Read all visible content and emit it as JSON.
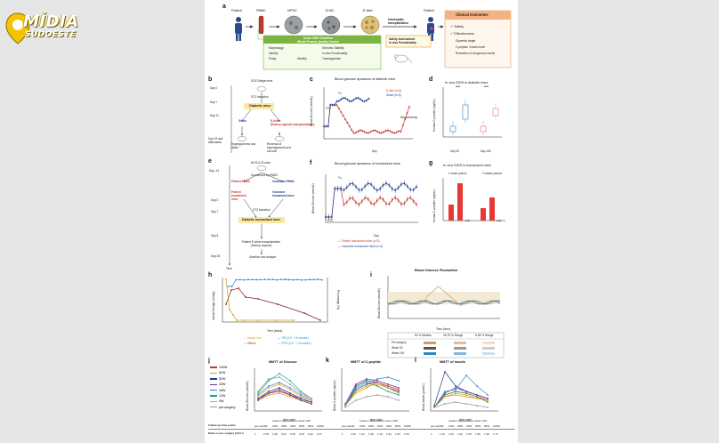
{
  "logo": {
    "line1": "MÍDIA",
    "line2": "SUDOESTE",
    "color": "#f5c400"
  },
  "panel_a": {
    "letter": "a",
    "stages": [
      "Patient",
      "PBMC",
      "hiPSC",
      "EnSC",
      "E-islet",
      "Patient"
    ],
    "transplant_label": "Intrahepatic\ntransplantation",
    "gmp_title": "Under GMP Condition\nWhole Process Quality Control",
    "gmp_items": [
      "Morphology",
      "Genomic Stability",
      "Identity",
      "In vitro Functionality",
      "Purity",
      "Sterility",
      "Tumorigenesis"
    ],
    "safety_title": "Safety Assessment\nIn vivo Functionality",
    "outcomes_title": "Clinical Outcomes",
    "outcomes": [
      "Safety",
      "Effectiveness"
    ],
    "outcome_sub": [
      "Glycemic target",
      "C-peptide / insulin level",
      "Reduction of exogenous insulin"
    ]
  },
  "panel_b": {
    "letter": "b",
    "days": [
      "Day 0",
      "Day 7",
      "Day 11",
      "Day 19 and afterwards"
    ],
    "mouse": "SCID Beige mice",
    "stz": "STZ induction",
    "diabetic": "Diabetic mice",
    "sham": "Sham",
    "eislets": "E-islets\n(Kidney capsule transplantation)",
    "out1": "Hyperglycemia and death",
    "out2": "Reversal of hyperglycemia and survival"
  },
  "panel_c": {
    "letter": "c",
    "title": "Blood glucose dynamics of diabetic mice",
    "ylabel": "Blood Glucose (mmol/L)",
    "xlabel": "Day",
    "legend": [
      "E-islet (n=5)",
      "Sham (n=5)"
    ],
    "annot_tx": "Tx",
    "annot_stz": "STZ",
    "annot_neph": "Nephrectomy"
  },
  "panel_d": {
    "letter": "d",
    "title": "In vivo GSIS in diabetic mice",
    "ylabel": "Human C-peptide (ng/mL)",
    "groups": [
      "Day 90",
      "Day 180"
    ],
    "sig": "****"
  },
  "panel_e": {
    "letter": "e",
    "days": [
      "Day -14",
      "Day 0",
      "Day 7",
      "Day 8",
      "Day 28"
    ],
    "mouse": "NCG-IL15 mice",
    "humanized": "Humanized by PBMC",
    "patient": "Patient-PBMC",
    "volunteer": "Volunteer-PBMC",
    "patient_mice": "Patient humanized mice",
    "volunteer_mice": "Volunteer humanized mice",
    "stz": "STZ induction",
    "diabetic": "Diabetic humanized mice",
    "transplant": "Patient E-islets transplantation\n(Kidney capsule)",
    "end": "Sacrifice and analyze",
    "time": "Time"
  },
  "panel_f": {
    "letter": "f",
    "title": "Blood glucose dynamics of humanized mice",
    "ylabel": "Blood Glucose (mmol/L)",
    "xlabel": "Day",
    "legend": [
      "Patient humanized mice (n=3)",
      "Volunteer humanized mice (n=3)"
    ],
    "annot_tx": "Tx",
    "annot_stz": "STZ"
  },
  "panel_g": {
    "letter": "g",
    "title": "In vivo GSIS in humanized mice",
    "ylabel": "Human C-peptide (ng/mL)",
    "sub": [
      "1 week post-tx",
      "2 weeks post-tx"
    ],
    "ud": "u.d."
  },
  "panel_h": {
    "letter": "h",
    "ylabel_left": "Insulin Dosage (U/day)",
    "ylabel_right": "Percentage (%)",
    "xlabel": "Time (week)",
    "legend": [
      "Insulin Use",
      "HbA1c",
      "TIR (3.9 ~ 10 mmol/L)",
      "TITR (3.9 ~ 7.8 mmol/L)"
    ]
  },
  "panel_i": {
    "letter": "i",
    "title": "Blood Glucose Fluctuation",
    "xlabel": "Time (hour)",
    "ylabel": "Blood Glucose (mmol/L)",
    "legend_cols": [
      "50 % Median",
      "25-75 % Range",
      "5-95 % Range"
    ],
    "legend_rows": [
      "Pre-surgery",
      "Week 52",
      "Week 100"
    ]
  },
  "panel_j": {
    "letter": "j",
    "title": "MMTT of Glucose",
    "ylabel": "Blood Glucose (mmol/L)",
    "xlabel": "time (min)",
    "legend": [
      "100W",
      "81W",
      "52W",
      "24W",
      "18W",
      "12W",
      "4W",
      "pre-surgery"
    ],
    "legend_colors": [
      "#c0392b",
      "#d4a017",
      "#1f3a93",
      "#6c2d9c",
      "#2e86c1",
      "#16a085",
      "#f39c12",
      "#999999"
    ]
  },
  "panel_k": {
    "letter": "k",
    "title": "MMTT of C-peptide",
    "ylabel": "Blood C-peptide (ng/mL)",
    "xlabel": "time (min)"
  },
  "panel_l": {
    "letter": "l",
    "title": "MMTT of Insulin",
    "ylabel": "Blood Insulin (pmol/L)",
    "xlabel": "time (min)"
  },
  "table": {
    "row1_label": "Follow-up time points",
    "row2_label": "Ratio vs pre-surgery (AUC in MMT test)",
    "header_j": [
      "pre-surgery",
      "4W",
      "12W",
      "18W",
      "24W",
      "52W",
      "81W",
      "100W"
    ],
    "values_j": [
      "1",
      "0.78",
      "1.08",
      "0.62",
      "0.45",
      "0.40",
      "0.42",
      "0.47"
    ],
    "values_k": [
      "1",
      "1.02",
      "1.21",
      "1.38",
      "1.19",
      "1.93",
      "1.63",
      "1.50"
    ],
    "values_l": [
      "1",
      "1.10",
      "1.53",
      "1.93",
      "1.56",
      "1.56",
      "1.39",
      "1.71"
    ],
    "note": "Insulin independence since 11W"
  }
}
